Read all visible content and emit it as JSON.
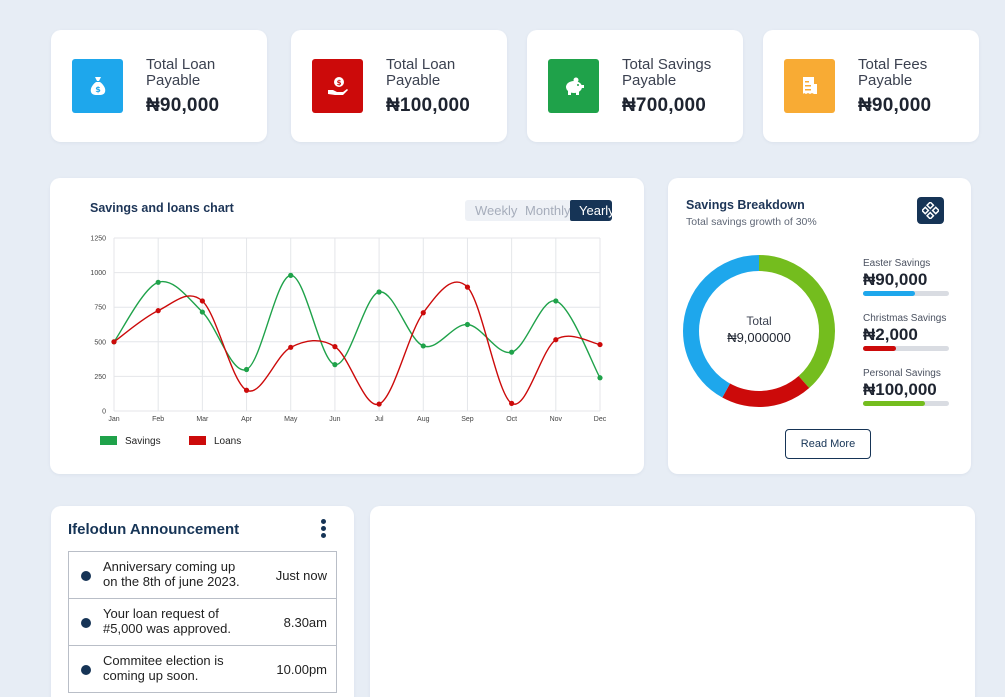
{
  "stats": [
    {
      "label": "Total Loan Payable",
      "value": "₦90,000",
      "icon": "money-bag-icon",
      "color": "#1ea7ec"
    },
    {
      "label": "Total Loan Payable",
      "value": "₦100,000",
      "icon": "hand-money-icon",
      "color": "#cc0a0a"
    },
    {
      "label": "Total Savings Payable",
      "value": "₦700,000",
      "icon": "piggy-bank-icon",
      "color": "#1fa24a"
    },
    {
      "label": "Total Fees Payable",
      "value": "₦90,000",
      "icon": "receipt-icon",
      "color": "#f8ab34"
    }
  ],
  "chart": {
    "title": "Savings and loans chart",
    "tabs": [
      "Weekly",
      "Monthly",
      "Yearly"
    ],
    "active_tab": "Yearly"
  },
  "chart_data": {
    "type": "line",
    "categories": [
      "Jan",
      "Feb",
      "Mar",
      "Apr",
      "May",
      "Jun",
      "Jul",
      "Aug",
      "Sep",
      "Oct",
      "Nov",
      "Dec"
    ],
    "yticks": [
      0,
      250,
      500,
      750,
      1000,
      1250
    ],
    "ylim": [
      0,
      1250
    ],
    "grid": true,
    "legend": "bottom-left",
    "series": [
      {
        "name": "Savings",
        "color": "#1fa24a",
        "values": [
          500,
          930,
          715,
          300,
          980,
          335,
          860,
          470,
          625,
          425,
          795,
          240
        ]
      },
      {
        "name": "Loans",
        "color": "#cc0a0a",
        "values": [
          500,
          725,
          795,
          150,
          460,
          465,
          50,
          710,
          895,
          55,
          515,
          480
        ]
      }
    ]
  },
  "breakdown": {
    "title": "Savings Breakdown",
    "subtitle": "Total savings growth of 30%",
    "icon": "grid-diamond-icon",
    "donut_center_label": "Total",
    "donut_center_value": "₦9,000000",
    "items": [
      {
        "name": "Easter Savings",
        "amount": "₦90,000",
        "color": "#1ea7ec",
        "level": 0.6
      },
      {
        "name": "Christmas Savings",
        "amount": "₦2,000",
        "color": "#cc0a0a",
        "level": 0.38
      },
      {
        "name": "Personal Savings",
        "amount": "₦100,000",
        "color": "#74bd1e",
        "level": 0.72
      }
    ],
    "donut_segments": [
      {
        "name": "Personal Savings",
        "color": "#74bd1e",
        "fraction": 0.385
      },
      {
        "name": "Christmas Savings",
        "color": "#cc0a0a",
        "fraction": 0.195
      },
      {
        "name": "Easter Savings",
        "color": "#1ea7ec",
        "fraction": 0.42
      }
    ],
    "button": "Read More"
  },
  "announcements": {
    "title": "Ifelodun Announcement",
    "items": [
      {
        "text": "Anniversary coming up on the 8th of june 2023.",
        "time": "Just now"
      },
      {
        "text": "Your loan request of #5,000 was approved.",
        "time": "8.30am"
      },
      {
        "text": "Commitee election is coming up soon.",
        "time": "10.00pm"
      }
    ]
  }
}
